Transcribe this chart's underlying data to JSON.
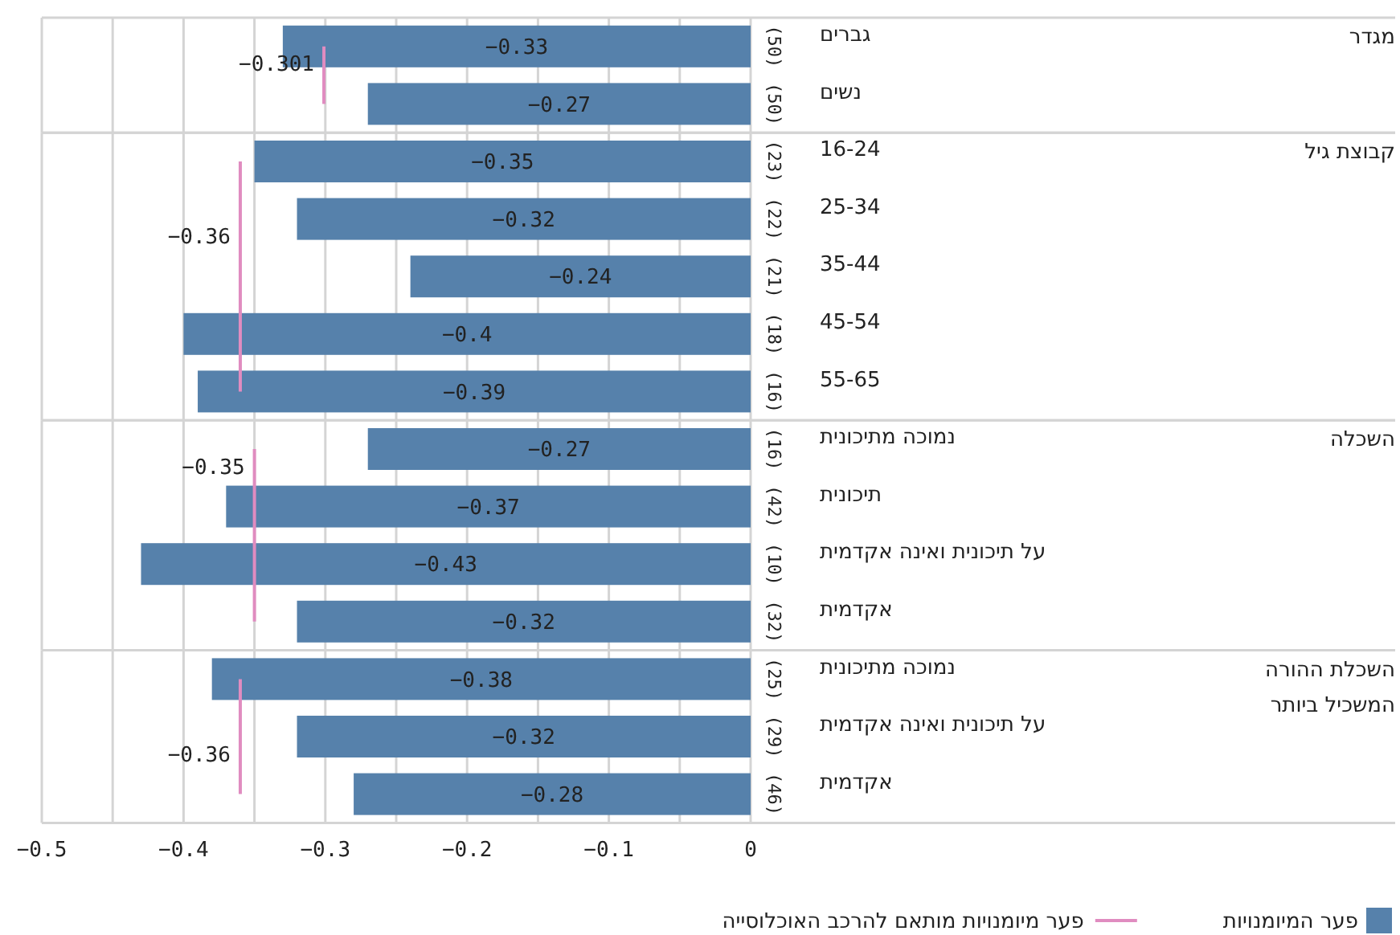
{
  "chart_data": [
    {
      "type": "bar",
      "orientation": "horizontal",
      "ylabel": "מגדר",
      "categories": [
        "גברים",
        "נשים"
      ],
      "series": [
        {
          "color": "#5681ab",
          "values": [
            -0.33,
            -0.27
          ]
        },
        {
          "type": "line",
          "color": "#e08cc0",
          "values": [
            -0.301,
            -0.301
          ],
          "value_labels": [
            "−0.301",
            null
          ]
        }
      ],
      "data_labels": true,
      "annotations": [
        "(50)",
        "(50)"
      ],
      "xlim": [
        -0.5,
        0
      ],
      "xticks": [
        -0.5,
        {
          "value": -0.45,
          "label": null
        },
        -0.4,
        {
          "value": -0.35,
          "label": null
        },
        -0.3,
        {
          "value": -0.25,
          "label": null
        },
        -0.2,
        {
          "value": -0.15,
          "label": null
        },
        -0.1,
        {
          "value": -0.05,
          "label": null
        },
        0
      ],
      "grid": "x",
      "tick_labels": "y",
      "legend": false
    },
    {
      "type": "bar",
      "orientation": "horizontal",
      "ylabel": "קבוצת גיל",
      "categories": [
        "16-24",
        "25-34",
        "35-44",
        "45-54",
        "55-65"
      ],
      "series": [
        {
          "color": "#5681ab",
          "values": [
            -0.35,
            -0.32,
            -0.24,
            -0.4,
            -0.39
          ]
        },
        {
          "type": "line",
          "color": "#e08cc0",
          "values": [
            -0.36,
            -0.36,
            -0.36,
            -0.36,
            -0.36
          ],
          "value_labels": [
            null,
            "−0.36",
            null,
            null,
            null
          ]
        }
      ],
      "data_labels": true,
      "annotations": [
        "(23)",
        "(22)",
        "(21)",
        "(18)",
        "(16)"
      ],
      "xlim": [
        -0.5,
        0
      ],
      "xticks": [
        -0.5,
        {
          "value": -0.45,
          "label": null
        },
        -0.4,
        {
          "value": -0.35,
          "label": null
        },
        -0.3,
        {
          "value": -0.25,
          "label": null
        },
        -0.2,
        {
          "value": -0.15,
          "label": null
        },
        -0.1,
        {
          "value": -0.05,
          "label": null
        },
        0
      ],
      "grid": "x",
      "tick_labels": "y",
      "legend": false
    },
    {
      "type": "bar",
      "orientation": "horizontal",
      "ylabel": "השכלה",
      "categories": [
        "נמוכה מתיכונית",
        "תיכונית",
        "על תיכונית ואינה אקדמית",
        "אקדמית"
      ],
      "series": [
        {
          "color": "#5681ab",
          "values": [
            -0.27,
            -0.37,
            -0.43,
            -0.32
          ]
        },
        {
          "type": "line",
          "color": "#e08cc0",
          "values": [
            -0.35,
            -0.35,
            -0.35,
            -0.35
          ],
          "value_labels": [
            "−0.35",
            null,
            null,
            null
          ]
        }
      ],
      "data_labels": true,
      "annotations": [
        "(16)",
        "(42)",
        "(10)",
        "(32)"
      ],
      "xlim": [
        -0.5,
        0
      ],
      "xticks": [
        -0.5,
        {
          "value": -0.45,
          "label": null
        },
        -0.4,
        {
          "value": -0.35,
          "label": null
        },
        -0.3,
        {
          "value": -0.25,
          "label": null
        },
        -0.2,
        {
          "value": -0.15,
          "label": null
        },
        -0.1,
        {
          "value": -0.05,
          "label": null
        },
        0
      ],
      "grid": "x",
      "tick_labels": "y",
      "legend": false
    },
    {
      "type": "bar",
      "orientation": "horizontal",
      "ylabel": "השכלת ההורה המשכיל ביותר",
      "categories": [
        "נמוכה מתיכונית",
        "על תיכונית ואינה אקדמית",
        "אקדמית"
      ],
      "series": [
        {
          "name": "פער המיומנויות",
          "color": "#5681ab",
          "values": [
            -0.38,
            -0.32,
            -0.28
          ]
        },
        {
          "type": "line",
          "name": "פער מיומנויות מותאם להרכב האוכלוסייה",
          "color": "#e08cc0",
          "values": [
            -0.36,
            -0.36,
            -0.36
          ],
          "value_labels": [
            null,
            "−0.36",
            null
          ]
        }
      ],
      "data_labels": true,
      "annotations": [
        "(25)",
        "(29)",
        "(46)"
      ],
      "xlim": [
        -0.5,
        0
      ],
      "xticks": [
        -0.5,
        {
          "value": -0.45,
          "label": null
        },
        -0.4,
        {
          "value": -0.35,
          "label": null
        },
        -0.3,
        {
          "value": -0.25,
          "label": null
        },
        -0.2,
        {
          "value": -0.15,
          "label": null
        },
        -0.1,
        {
          "value": -0.05,
          "label": null
        },
        0
      ],
      "grid": "x",
      "legend": "bottom"
    }
  ]
}
